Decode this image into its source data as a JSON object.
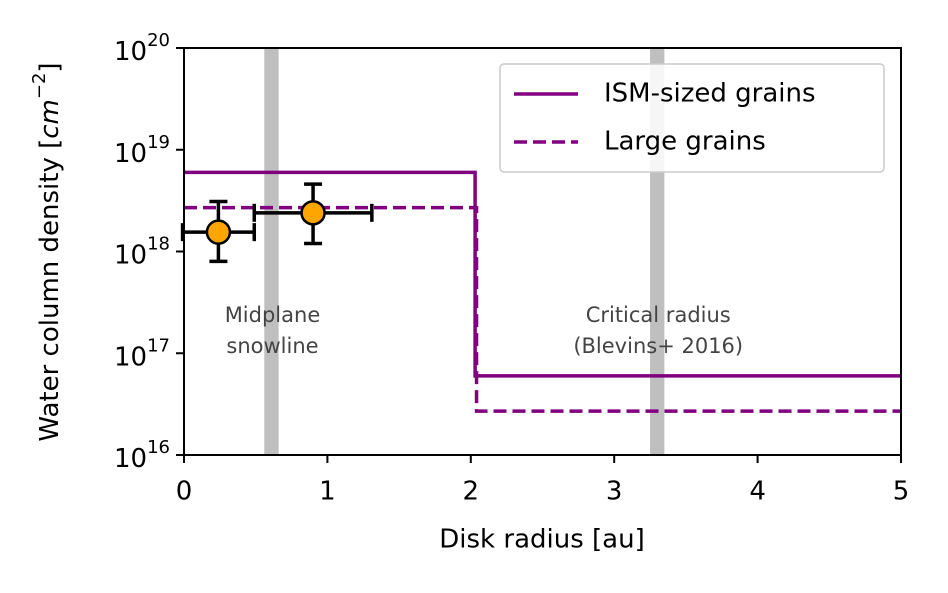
{
  "chart_data": {
    "type": "line",
    "xlabel": "Disk radius [au]",
    "ylabel": [
      "Water column density [",
      "cm",
      "−2",
      "]"
    ],
    "xlim": [
      0,
      5
    ],
    "xticks": [
      0,
      1,
      2,
      3,
      4,
      5
    ],
    "ylim": [
      1e+16,
      1e+20
    ],
    "log_y": true,
    "yticks": [
      {
        "value": 1e+16,
        "label": "10",
        "exponent": "16"
      },
      {
        "value": 1e+17,
        "label": "10",
        "exponent": "17"
      },
      {
        "value": 1e+18,
        "label": "10",
        "exponent": "18"
      },
      {
        "value": 1e+19,
        "label": "10",
        "exponent": "19"
      },
      {
        "value": 1e+20,
        "label": "10",
        "exponent": "20"
      }
    ],
    "legend": "upper right",
    "series": [
      {
        "name": "ISM-sized grains",
        "color": "#800080",
        "dash": false,
        "x": [
          0,
          2.03,
          2.03,
          5
        ],
        "values": [
          6e+18,
          6e+18,
          6e+16,
          6e+16
        ]
      },
      {
        "name": "Large grains",
        "color": "#800080",
        "dash": true,
        "x": [
          0,
          2.04,
          2.04,
          5
        ],
        "values": [
          2.7e+18,
          2.7e+18,
          2.7e+16,
          2.7e+16
        ]
      }
    ],
    "points": {
      "color": "#ffa500",
      "x": [
        0.24,
        0.9
      ],
      "xerr": [
        0.25,
        0.41
      ],
      "y": [
        1.55e+18,
        2.4e+18
      ],
      "ylow": [
        8e+17,
        1.2e+18
      ],
      "yhigh": [
        3.1e+18,
        4.6e+18
      ]
    },
    "bands": [
      {
        "x": 0.61,
        "width": 0.1,
        "color": "#bfbfbf",
        "label": [
          "Midplane",
          "snowline"
        ]
      },
      {
        "x": 3.3,
        "width": 0.1,
        "color": "#bfbfbf",
        "label": [
          "Critical radius",
          "(Blevins+ 2016)"
        ]
      }
    ]
  }
}
